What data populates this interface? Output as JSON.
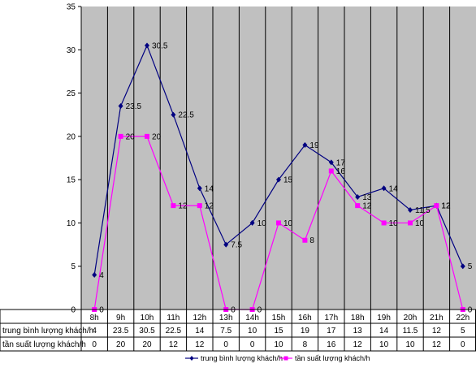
{
  "chart_data": {
    "type": "line",
    "title": "",
    "xlabel": "",
    "ylabel": "",
    "categories": [
      "8h",
      "9h",
      "10h",
      "11h",
      "12h",
      "13h",
      "14h",
      "15h",
      "16h",
      "17h",
      "18h",
      "19h",
      "20h",
      "21h",
      "22h"
    ],
    "ylim": [
      0,
      35
    ],
    "yticks": [
      0,
      5,
      10,
      15,
      20,
      25,
      30,
      35
    ],
    "grid": "vertical",
    "legend": "bottom",
    "series": [
      {
        "name": "trung bình lượng khách/h",
        "color": "#000080",
        "marker": "diamond",
        "values": [
          4,
          23.5,
          30.5,
          22.5,
          14,
          7.5,
          10,
          15,
          19,
          17,
          13,
          14,
          11.5,
          12,
          5
        ]
      },
      {
        "name": "tần suất lượng khách/h",
        "color": "#ff00ff",
        "marker": "square",
        "values": [
          0,
          20,
          20,
          12,
          12,
          0,
          0,
          10,
          8,
          16,
          12,
          10,
          10,
          12,
          0
        ]
      }
    ]
  },
  "colors": {
    "plot_bg": "#c0c0c0",
    "grid": "#000000"
  }
}
